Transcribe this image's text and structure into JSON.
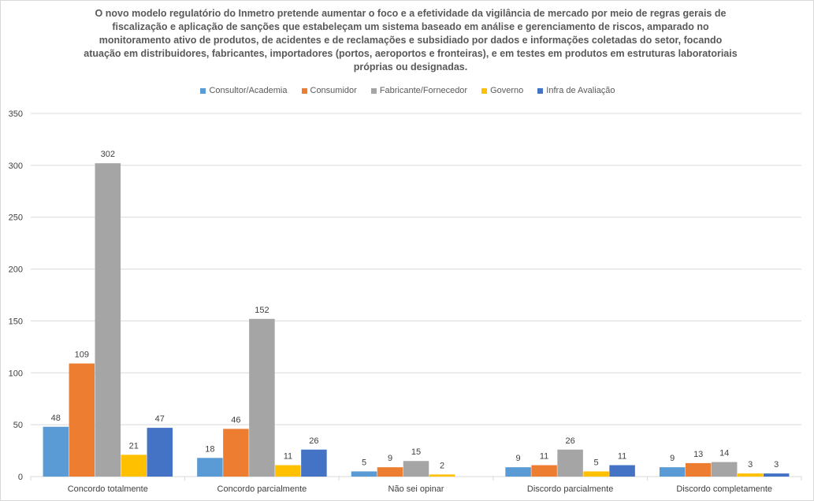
{
  "chart_data": {
    "type": "bar",
    "title": "O novo modelo regulatório do Inmetro pretende aumentar o foco e a efetividade da vigilância de mercado por meio de regras gerais de fiscalização e aplicação de sanções que estabeleçam um sistema baseado em análise e gerenciamento de riscos, amparado no monitoramento ativo de produtos, de acidentes e de reclamações e subsidiado por dados e informações coletadas do setor, focando atuação em distribuidores, fabricantes, importadores (portos, aeroportos e fronteiras), e em testes em produtos em estruturas laboratoriais próprias ou designadas.",
    "categories": [
      "Concordo totalmente",
      "Concordo parcialmente",
      "Não sei opinar",
      "Discordo parcialmente",
      "Discordo completamente"
    ],
    "series": [
      {
        "name": "Consultor/Academia",
        "color": "#5B9BD5",
        "values": [
          48,
          18,
          5,
          9,
          9
        ]
      },
      {
        "name": "Consumidor",
        "color": "#ED7D31",
        "values": [
          109,
          46,
          9,
          11,
          13
        ]
      },
      {
        "name": "Fabricante/Fornecedor",
        "color": "#A5A5A5",
        "values": [
          302,
          152,
          15,
          26,
          14
        ]
      },
      {
        "name": "Governo",
        "color": "#FFC000",
        "values": [
          21,
          11,
          2,
          5,
          3
        ]
      },
      {
        "name": "Infra de Avaliação",
        "color": "#4472C4",
        "values": [
          47,
          26,
          null,
          11,
          3
        ]
      }
    ],
    "ylim": [
      0,
      350
    ],
    "yticks": [
      0,
      50,
      100,
      150,
      200,
      250,
      300,
      350
    ],
    "grid": true,
    "legend": "top"
  }
}
